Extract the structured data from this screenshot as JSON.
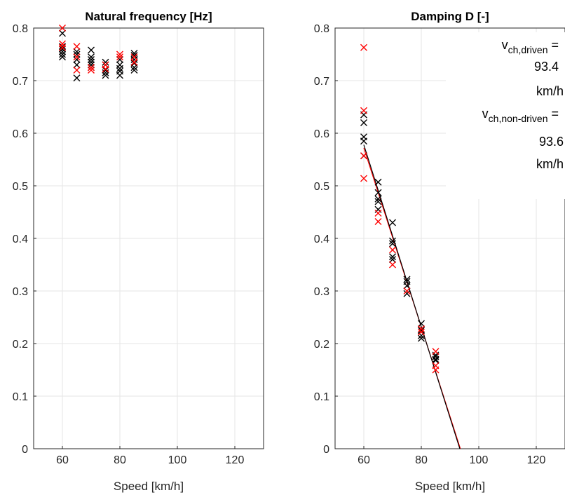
{
  "chart_data": [
    {
      "type": "scatter",
      "title": "Natural frequency [Hz]",
      "xlabel": "Speed [km/h]",
      "ylabel": "",
      "xlim": [
        50,
        130
      ],
      "ylim": [
        0,
        0.8
      ],
      "xticks": [
        "60",
        "80",
        "100",
        "120"
      ],
      "yticks": [
        "0",
        "0.1",
        "0.2",
        "0.3",
        "0.4",
        "0.5",
        "0.6",
        "0.7",
        "0.8"
      ],
      "grid": true,
      "series": [
        {
          "color": "#000000",
          "marker": "x",
          "points": [
            [
              60,
              0.745
            ],
            [
              60,
              0.75
            ],
            [
              60,
              0.755
            ],
            [
              60,
              0.76
            ],
            [
              60,
              0.765
            ],
            [
              60,
              0.79
            ],
            [
              65,
              0.705
            ],
            [
              65,
              0.73
            ],
            [
              65,
              0.74
            ],
            [
              65,
              0.75
            ],
            [
              65,
              0.755
            ],
            [
              70,
              0.725
            ],
            [
              70,
              0.73
            ],
            [
              70,
              0.735
            ],
            [
              70,
              0.74
            ],
            [
              70,
              0.745
            ],
            [
              70,
              0.758
            ],
            [
              75,
              0.71
            ],
            [
              75,
              0.715
            ],
            [
              75,
              0.72
            ],
            [
              75,
              0.73
            ],
            [
              75,
              0.735
            ],
            [
              80,
              0.71
            ],
            [
              80,
              0.718
            ],
            [
              80,
              0.723
            ],
            [
              80,
              0.73
            ],
            [
              80,
              0.74
            ],
            [
              85,
              0.72
            ],
            [
              85,
              0.725
            ],
            [
              85,
              0.733
            ],
            [
              85,
              0.74
            ],
            [
              85,
              0.748
            ],
            [
              85,
              0.752
            ]
          ]
        },
        {
          "color": "#ff0000",
          "marker": "x",
          "points": [
            [
              60,
              0.8
            ],
            [
              60,
              0.77
            ],
            [
              60,
              0.763
            ],
            [
              65,
              0.765
            ],
            [
              65,
              0.745
            ],
            [
              65,
              0.72
            ],
            [
              70,
              0.72
            ],
            [
              70,
              0.725
            ],
            [
              75,
              0.722
            ],
            [
              75,
              0.73
            ],
            [
              80,
              0.745
            ],
            [
              80,
              0.75
            ],
            [
              85,
              0.735
            ],
            [
              85,
              0.745
            ]
          ]
        }
      ]
    },
    {
      "type": "scatter",
      "title": "Damping D [-]",
      "xlabel": "Speed [km/h]",
      "ylabel": "",
      "xlim": [
        50,
        130
      ],
      "ylim": [
        0,
        0.8
      ],
      "xticks": [
        "60",
        "80",
        "100",
        "120"
      ],
      "yticks": [
        "0",
        "0.1",
        "0.2",
        "0.3",
        "0.4",
        "0.5",
        "0.6",
        "0.7",
        "0.8"
      ],
      "grid": true,
      "series": [
        {
          "color": "#000000",
          "marker": "x",
          "points": [
            [
              60,
              0.635
            ],
            [
              60,
              0.62
            ],
            [
              60,
              0.593
            ],
            [
              60,
              0.585
            ],
            [
              60,
              0.557
            ],
            [
              65,
              0.507
            ],
            [
              65,
              0.487
            ],
            [
              65,
              0.475
            ],
            [
              65,
              0.47
            ],
            [
              65,
              0.455
            ],
            [
              70,
              0.43
            ],
            [
              70,
              0.395
            ],
            [
              70,
              0.39
            ],
            [
              70,
              0.365
            ],
            [
              70,
              0.36
            ],
            [
              75,
              0.322
            ],
            [
              75,
              0.318
            ],
            [
              75,
              0.31
            ],
            [
              75,
              0.295
            ],
            [
              80,
              0.238
            ],
            [
              80,
              0.225
            ],
            [
              80,
              0.215
            ],
            [
              80,
              0.21
            ],
            [
              85,
              0.178
            ],
            [
              85,
              0.175
            ],
            [
              85,
              0.17
            ],
            [
              85,
              0.168
            ]
          ]
        },
        {
          "color": "#ff0000",
          "marker": "x",
          "points": [
            [
              60,
              0.763
            ],
            [
              60,
              0.643
            ],
            [
              60,
              0.557
            ],
            [
              60,
              0.514
            ],
            [
              65,
              0.448
            ],
            [
              65,
              0.432
            ],
            [
              70,
              0.378
            ],
            [
              70,
              0.35
            ],
            [
              75,
              0.3
            ],
            [
              80,
              0.228
            ],
            [
              80,
              0.222
            ],
            [
              85,
              0.185
            ],
            [
              85,
              0.158
            ],
            [
              85,
              0.15
            ]
          ]
        }
      ],
      "fit_lines": [
        {
          "color": "#ff0000",
          "x": [
            60,
            93.6
          ],
          "y": [
            0.572,
            0.0
          ]
        },
        {
          "color": "#000000",
          "x": [
            60,
            93.4
          ],
          "y": [
            0.578,
            0.0
          ]
        }
      ],
      "annotation": {
        "line1_main": "v",
        "line1_sub": "ch,driven",
        "line1_rest": " =",
        "line2": "93.4",
        "line3": "km/h",
        "line4_main": "v",
        "line4_sub": "ch,non-driven",
        "line4_rest": " =",
        "line5": "93.6",
        "line6": "km/h"
      }
    }
  ]
}
